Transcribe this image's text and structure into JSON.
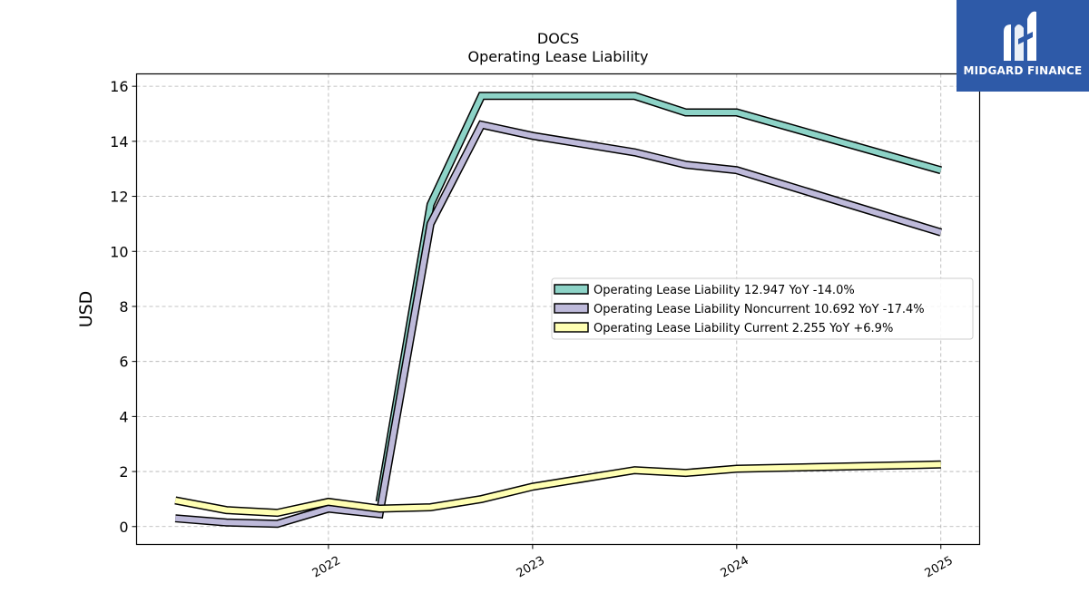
{
  "chart_data": {
    "type": "line",
    "title": "DOCS",
    "subtitle": "Operating Lease Liability",
    "ylabel": "USD",
    "xlabel": "",
    "ylim": [
      -0.65,
      16.45
    ],
    "yticks": [
      0,
      2,
      4,
      6,
      8,
      10,
      12,
      14,
      16
    ],
    "xticks": [
      {
        "label": "2022",
        "value": 2022.0
      },
      {
        "label": "2023",
        "value": 2023.0
      },
      {
        "label": "2024",
        "value": 2024.0
      },
      {
        "label": "2025",
        "value": 2025.0
      }
    ],
    "xlim": [
      2021.06,
      2025.19
    ],
    "grid": true,
    "legend_position": "center-right",
    "series": [
      {
        "name": "Operating Lease Liability",
        "legend": "Operating Lease Liability  12.947 YoY -14.0%",
        "color": "#8dd3c7",
        "x": [
          2022.25,
          2022.5,
          2022.75,
          2023.0,
          2023.5,
          2023.75,
          2024.0,
          2025.0
        ],
        "y": [
          0.9,
          11.7,
          15.65,
          15.65,
          15.65,
          15.05,
          15.05,
          12.947
        ]
      },
      {
        "name": "Operating Lease Liability Noncurrent",
        "legend": "Operating Lease Liability Noncurrent  10.692 YoY -17.4%",
        "color": "#bebada",
        "x": [
          2021.25,
          2021.5,
          2021.75,
          2022.0,
          2022.25,
          2022.5,
          2022.75,
          2023.0,
          2023.5,
          2023.75,
          2024.0,
          2025.0
        ],
        "y": [
          0.3,
          0.15,
          0.1,
          0.65,
          0.45,
          11.0,
          14.6,
          14.2,
          13.6,
          13.15,
          12.95,
          10.692
        ]
      },
      {
        "name": "Operating Lease Liability Current",
        "legend": "Operating Lease Liability Current  2.255 YoY +6.9%",
        "color": "#ffffb3",
        "x": [
          2021.25,
          2021.5,
          2021.75,
          2022.0,
          2022.25,
          2022.5,
          2022.75,
          2023.0,
          2023.5,
          2023.75,
          2024.0,
          2025.0
        ],
        "y": [
          0.95,
          0.6,
          0.5,
          0.9,
          0.65,
          0.7,
          1.0,
          1.45,
          2.05,
          1.95,
          2.1,
          2.255
        ]
      }
    ]
  },
  "logo": {
    "brand_text": "MIDGARD FINANCE",
    "background": "#2e5aa8"
  }
}
